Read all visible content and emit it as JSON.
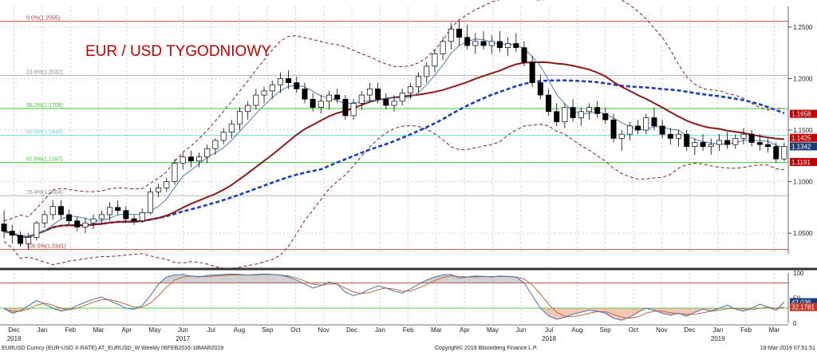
{
  "chart_data": {
    "type": "candlestick",
    "title": "EUR / USD TYGODNIOWY",
    "ylim": [
      1.03,
      1.27
    ],
    "yticks": [
      1.05,
      1.1,
      1.15,
      1.2,
      1.25
    ],
    "ytick_labels": [
      "1.0500",
      "1.1000",
      "1.1500",
      "1.2000",
      "1.2500"
    ],
    "month_labels": [
      "Dec",
      "Jan",
      "Feb",
      "Mar",
      "Apr",
      "May",
      "Jun",
      "Jul",
      "Aug",
      "Sep",
      "Oct",
      "Nov",
      "Dec",
      "Jan",
      "Feb",
      "Mar",
      "Apr",
      "May",
      "Jun",
      "Jul",
      "Aug",
      "Sep",
      "Oct",
      "Nov",
      "Dec",
      "Jan",
      "Feb",
      "Mar"
    ],
    "year_labels": [
      {
        "label": "2016",
        "month_index": 0
      },
      {
        "label": "2017",
        "month_index": 6
      },
      {
        "label": "2018",
        "month_index": 19
      },
      {
        "label": "2019",
        "month_index": 25
      }
    ],
    "fibonacci": [
      {
        "label": "0.0%(1.2555)",
        "value": 1.2555,
        "color": "#c0392b"
      },
      {
        "label": "23.6%(1.2032)",
        "value": 1.2032,
        "color": "#aaaaaa"
      },
      {
        "label": "38.2%(1.1709)",
        "value": 1.1709,
        "color": "#33cc33"
      },
      {
        "label": "50.0%(1.1448)",
        "value": 1.1448,
        "color": "#66d9e8"
      },
      {
        "label": "61.8%(1.1187)",
        "value": 1.1187,
        "color": "#33cc33"
      },
      {
        "label": "76.4%(1.0864)",
        "value": 1.0864,
        "color": "#aaaaaa"
      },
      {
        "label": "100.0%(1.0341)",
        "value": 1.0341,
        "color": "#c0392b"
      }
    ],
    "price_tags": [
      {
        "label": "1.1658",
        "value": 1.1658,
        "color": "#c00000"
      },
      {
        "label": "1.1425",
        "value": 1.1425,
        "color": "#c00000"
      },
      {
        "label": "1.1342",
        "value": 1.1342,
        "color": "#1f3b73"
      },
      {
        "label": "1.1191",
        "value": 1.1191,
        "color": "#c00000"
      }
    ],
    "candles": [
      [
        1.059,
        1.072,
        1.045,
        1.052
      ],
      [
        1.052,
        1.058,
        1.04,
        1.048
      ],
      [
        1.048,
        1.052,
        1.037,
        1.04
      ],
      [
        1.04,
        1.05,
        1.034,
        1.046
      ],
      [
        1.046,
        1.062,
        1.043,
        1.06
      ],
      [
        1.06,
        1.072,
        1.055,
        1.068
      ],
      [
        1.068,
        1.082,
        1.063,
        1.076
      ],
      [
        1.076,
        1.082,
        1.064,
        1.068
      ],
      [
        1.068,
        1.073,
        1.058,
        1.062
      ],
      [
        1.062,
        1.066,
        1.052,
        1.056
      ],
      [
        1.056,
        1.065,
        1.05,
        1.06
      ],
      [
        1.06,
        1.068,
        1.054,
        1.064
      ],
      [
        1.064,
        1.072,
        1.058,
        1.068
      ],
      [
        1.068,
        1.08,
        1.062,
        1.075
      ],
      [
        1.075,
        1.082,
        1.068,
        1.072
      ],
      [
        1.072,
        1.076,
        1.06,
        1.064
      ],
      [
        1.064,
        1.068,
        1.058,
        1.062
      ],
      [
        1.062,
        1.074,
        1.06,
        1.07
      ],
      [
        1.07,
        1.094,
        1.068,
        1.09
      ],
      [
        1.09,
        1.098,
        1.085,
        1.094
      ],
      [
        1.094,
        1.104,
        1.09,
        1.1
      ],
      [
        1.1,
        1.122,
        1.097,
        1.118
      ],
      [
        1.118,
        1.128,
        1.112,
        1.124
      ],
      [
        1.124,
        1.13,
        1.114,
        1.12
      ],
      [
        1.12,
        1.128,
        1.114,
        1.124
      ],
      [
        1.124,
        1.136,
        1.118,
        1.132
      ],
      [
        1.132,
        1.142,
        1.126,
        1.14
      ],
      [
        1.14,
        1.152,
        1.136,
        1.148
      ],
      [
        1.148,
        1.16,
        1.142,
        1.156
      ],
      [
        1.156,
        1.172,
        1.15,
        1.168
      ],
      [
        1.168,
        1.178,
        1.16,
        1.174
      ],
      [
        1.174,
        1.19,
        1.17,
        1.184
      ],
      [
        1.184,
        1.192,
        1.176,
        1.188
      ],
      [
        1.188,
        1.198,
        1.18,
        1.194
      ],
      [
        1.194,
        1.206,
        1.186,
        1.2
      ],
      [
        1.2,
        1.208,
        1.19,
        1.196
      ],
      [
        1.196,
        1.202,
        1.186,
        1.19
      ],
      [
        1.19,
        1.196,
        1.176,
        1.18
      ],
      [
        1.18,
        1.186,
        1.168,
        1.172
      ],
      [
        1.172,
        1.184,
        1.166,
        1.178
      ],
      [
        1.178,
        1.188,
        1.17,
        1.184
      ],
      [
        1.184,
        1.19,
        1.176,
        1.18
      ],
      [
        1.18,
        1.184,
        1.16,
        1.164
      ],
      [
        1.164,
        1.18,
        1.16,
        1.176
      ],
      [
        1.176,
        1.188,
        1.17,
        1.184
      ],
      [
        1.184,
        1.196,
        1.178,
        1.19
      ],
      [
        1.19,
        1.196,
        1.176,
        1.18
      ],
      [
        1.18,
        1.186,
        1.17,
        1.174
      ],
      [
        1.174,
        1.184,
        1.168,
        1.178
      ],
      [
        1.178,
        1.19,
        1.174,
        1.186
      ],
      [
        1.186,
        1.196,
        1.18,
        1.192
      ],
      [
        1.192,
        1.206,
        1.186,
        1.202
      ],
      [
        1.202,
        1.216,
        1.196,
        1.212
      ],
      [
        1.212,
        1.228,
        1.206,
        1.224
      ],
      [
        1.224,
        1.24,
        1.218,
        1.236
      ],
      [
        1.236,
        1.254,
        1.228,
        1.248
      ],
      [
        1.248,
        1.256,
        1.232,
        1.24
      ],
      [
        1.24,
        1.252,
        1.228,
        1.232
      ],
      [
        1.232,
        1.244,
        1.224,
        1.236
      ],
      [
        1.236,
        1.246,
        1.228,
        1.232
      ],
      [
        1.232,
        1.242,
        1.224,
        1.236
      ],
      [
        1.236,
        1.246,
        1.226,
        1.23
      ],
      [
        1.23,
        1.24,
        1.222,
        1.234
      ],
      [
        1.234,
        1.244,
        1.226,
        1.23
      ],
      [
        1.23,
        1.236,
        1.212,
        1.216
      ],
      [
        1.216,
        1.222,
        1.192,
        1.196
      ],
      [
        1.196,
        1.204,
        1.18,
        1.184
      ],
      [
        1.184,
        1.19,
        1.164,
        1.168
      ],
      [
        1.168,
        1.176,
        1.154,
        1.158
      ],
      [
        1.158,
        1.176,
        1.152,
        1.172
      ],
      [
        1.172,
        1.18,
        1.158,
        1.162
      ],
      [
        1.162,
        1.172,
        1.154,
        1.168
      ],
      [
        1.168,
        1.176,
        1.16,
        1.172
      ],
      [
        1.172,
        1.178,
        1.162,
        1.166
      ],
      [
        1.166,
        1.172,
        1.156,
        1.16
      ],
      [
        1.16,
        1.166,
        1.138,
        1.142
      ],
      [
        1.142,
        1.15,
        1.13,
        1.146
      ],
      [
        1.146,
        1.158,
        1.14,
        1.154
      ],
      [
        1.154,
        1.16,
        1.146,
        1.15
      ],
      [
        1.15,
        1.166,
        1.146,
        1.162
      ],
      [
        1.162,
        1.172,
        1.15,
        1.154
      ],
      [
        1.154,
        1.16,
        1.142,
        1.146
      ],
      [
        1.146,
        1.152,
        1.136,
        1.142
      ],
      [
        1.142,
        1.15,
        1.134,
        1.146
      ],
      [
        1.146,
        1.15,
        1.13,
        1.134
      ],
      [
        1.134,
        1.142,
        1.126,
        1.138
      ],
      [
        1.138,
        1.146,
        1.13,
        1.134
      ],
      [
        1.134,
        1.142,
        1.126,
        1.136
      ],
      [
        1.136,
        1.146,
        1.13,
        1.14
      ],
      [
        1.14,
        1.148,
        1.132,
        1.136
      ],
      [
        1.136,
        1.146,
        1.132,
        1.142
      ],
      [
        1.142,
        1.152,
        1.136,
        1.146
      ],
      [
        1.146,
        1.15,
        1.134,
        1.138
      ],
      [
        1.138,
        1.146,
        1.13,
        1.136
      ],
      [
        1.136,
        1.142,
        1.128,
        1.134
      ],
      [
        1.134,
        1.138,
        1.118,
        1.122
      ],
      [
        1.122,
        1.138,
        1.12,
        1.134
      ]
    ],
    "series": [
      {
        "name": "",
        "style": "solid-dark-red"
      },
      {
        "name": "",
        "style": "solid-steel-blue"
      },
      {
        "name": "",
        "style": "dashed-blue"
      },
      {
        "name": "",
        "style": "dashed-dark-red"
      }
    ],
    "sub_panel": {
      "type": "line",
      "ylim": [
        0,
        100
      ],
      "yticks": [
        0,
        50,
        100
      ],
      "ytick_labels": [
        "0",
        "50",
        "100"
      ],
      "levels": [
        80,
        30
      ],
      "level_colors": [
        "#c0392b",
        "#33cc33"
      ],
      "value_tags": [
        {
          "label": "42.036",
          "value": 42.036,
          "color": "#1f3b73"
        },
        {
          "label": "32.1781",
          "value": 32.1781,
          "color": "#c0392b"
        }
      ],
      "fast": [
        30,
        20,
        25,
        35,
        45,
        38,
        30,
        24,
        28,
        35,
        42,
        48,
        52,
        45,
        38,
        30,
        28,
        35,
        55,
        78,
        92,
        96,
        97,
        94,
        92,
        95,
        96,
        97,
        98,
        97,
        96,
        97,
        98,
        97,
        96,
        92,
        86,
        78,
        70,
        75,
        82,
        78,
        62,
        55,
        60,
        68,
        74,
        70,
        64,
        60,
        68,
        78,
        86,
        92,
        96,
        97,
        90,
        92,
        94,
        93,
        92,
        94,
        93,
        92,
        80,
        55,
        30,
        15,
        8,
        12,
        18,
        22,
        26,
        24,
        20,
        10,
        6,
        12,
        22,
        30,
        26,
        20,
        16,
        20,
        14,
        22,
        28,
        24,
        30,
        36,
        28,
        24,
        30,
        38,
        32,
        26,
        42
      ],
      "slow": [
        28,
        24,
        24,
        28,
        36,
        40,
        36,
        30,
        27,
        30,
        36,
        42,
        47,
        47,
        43,
        38,
        32,
        32,
        40,
        55,
        72,
        86,
        92,
        94,
        93,
        93,
        94,
        95,
        96,
        96,
        96,
        96,
        97,
        97,
        96,
        94,
        90,
        84,
        78,
        76,
        78,
        78,
        70,
        62,
        59,
        61,
        67,
        70,
        68,
        64,
        64,
        70,
        77,
        85,
        91,
        94,
        93,
        92,
        92,
        93,
        93,
        93,
        93,
        92,
        88,
        76,
        58,
        38,
        22,
        14,
        13,
        16,
        20,
        23,
        23,
        18,
        12,
        10,
        13,
        20,
        24,
        24,
        21,
        19,
        18,
        18,
        21,
        24,
        26,
        29,
        30,
        29,
        27,
        30,
        32,
        30,
        32
      ]
    }
  },
  "footer": {
    "left": "EURUSD Curncy (EUR-USD X-RATE) AT_EURUSD_W  Weekly 06FEB2016-18MAR2019",
    "center": "Copyright© 2019 Bloomberg Finance L.P.",
    "right": "18-Mar-2019 07:51:51"
  },
  "colors": {
    "bull_candle": "#ffffff",
    "bear_candle": "#000000",
    "ma_long": "#8b1a1a",
    "ma_short": "#4a7fb5",
    "ma_dashed": "#1a3fb5",
    "bands": "#8b1a1a"
  }
}
